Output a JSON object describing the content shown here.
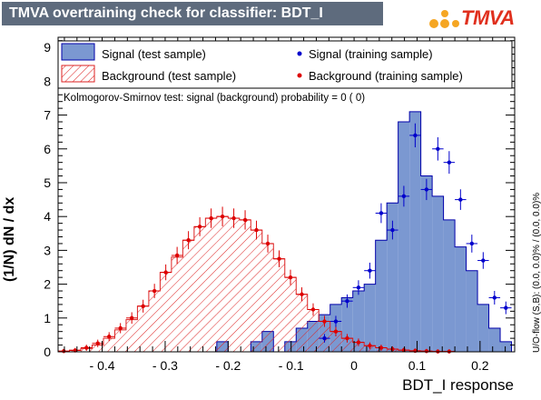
{
  "header": {
    "title": "TMVA overtraining check for classifier: BDT_I",
    "logo_text": "TMVA"
  },
  "side_note": "U/O-flow (S,B): (0.0, 0.0)% / (0.0, 0.0)%",
  "ks_text": "Kolmogorov-Smirnov test: signal (background) probability =     0 (    0)",
  "legend": {
    "signal_test": "Signal (test sample)",
    "background_test": "Background (test sample)",
    "signal_train": "Signal (training sample)",
    "background_train": "Background (training sample)"
  },
  "colors": {
    "signal_fill": "#7b98d1",
    "signal_line": "#0000aa",
    "background_hatch": "#dd2222",
    "signal_points": "#0000cc",
    "background_points": "#dd0000",
    "title_bg": "#5e6b7d"
  },
  "chart_data": {
    "type": "histogram",
    "xlabel": "BDT_I response",
    "ylabel": "(1/N) dN / dx",
    "xlim": [
      -0.47,
      0.255
    ],
    "ylim": [
      0,
      9.3
    ],
    "xticks": [
      -0.4,
      -0.3,
      -0.2,
      -0.1,
      0,
      0.1,
      0.2
    ],
    "yticks": [
      0,
      1,
      2,
      3,
      4,
      5,
      6,
      7,
      8,
      9
    ],
    "bin_edges": [
      -0.47,
      -0.452,
      -0.434,
      -0.416,
      -0.398,
      -0.38,
      -0.362,
      -0.344,
      -0.326,
      -0.308,
      -0.29,
      -0.272,
      -0.254,
      -0.236,
      -0.218,
      -0.2,
      -0.182,
      -0.164,
      -0.146,
      -0.128,
      -0.11,
      -0.092,
      -0.074,
      -0.056,
      -0.038,
      -0.02,
      -0.002,
      0.016,
      0.034,
      0.052,
      0.07,
      0.088,
      0.106,
      0.124,
      0.142,
      0.16,
      0.178,
      0.196,
      0.214,
      0.232,
      0.25
    ],
    "series": [
      {
        "name": "Signal (test sample)",
        "style": "filled-histogram",
        "values": [
          0,
          0,
          0,
          0,
          0,
          0,
          0,
          0,
          0,
          0,
          0,
          0,
          0,
          0,
          0.3,
          0,
          0,
          0.3,
          0.6,
          0,
          0.3,
          0.7,
          0.9,
          1.1,
          1.4,
          1.6,
          1.8,
          2.0,
          3.3,
          4.4,
          6.8,
          7.1,
          5.2,
          4.6,
          3.9,
          3.1,
          2.4,
          1.4,
          0.7,
          0.3
        ]
      },
      {
        "name": "Background (test sample)",
        "style": "hatched-histogram",
        "values": [
          0.02,
          0.05,
          0.1,
          0.2,
          0.4,
          0.65,
          0.95,
          1.35,
          1.8,
          2.35,
          2.8,
          3.3,
          3.7,
          3.95,
          4.0,
          3.95,
          3.9,
          3.6,
          3.2,
          2.75,
          2.2,
          1.7,
          1.25,
          0.9,
          0.6,
          0.4,
          0.28,
          0.18,
          0.12,
          0.08,
          0.05,
          0.03,
          0.02,
          0.01,
          0.01,
          0,
          0,
          0,
          0,
          0
        ]
      },
      {
        "name": "Signal (training sample)",
        "style": "points",
        "values": [
          0,
          0,
          0,
          0,
          0,
          0,
          0,
          0,
          0,
          0,
          0,
          0,
          0,
          0,
          0,
          0,
          0,
          0,
          0,
          0,
          0,
          0,
          0,
          0.4,
          0.9,
          1.5,
          1.9,
          2.4,
          4.1,
          3.6,
          4.6,
          6.4,
          4.8,
          6.0,
          5.6,
          4.5,
          3.2,
          2.7,
          1.6,
          1.3
        ]
      },
      {
        "name": "Background (training sample)",
        "style": "points",
        "values": [
          0.02,
          0.04,
          0.12,
          0.25,
          0.45,
          0.7,
          1.0,
          1.35,
          1.8,
          2.35,
          2.85,
          3.3,
          3.7,
          3.95,
          4.0,
          3.95,
          3.9,
          3.6,
          3.2,
          2.75,
          2.2,
          1.7,
          1.25,
          0.9,
          0.6,
          0.4,
          0.28,
          0.18,
          0.12,
          0.08,
          0.05,
          0.03,
          0.02,
          0.01,
          0.01,
          0,
          0,
          0,
          0,
          0
        ]
      }
    ],
    "legend_position": "top"
  }
}
